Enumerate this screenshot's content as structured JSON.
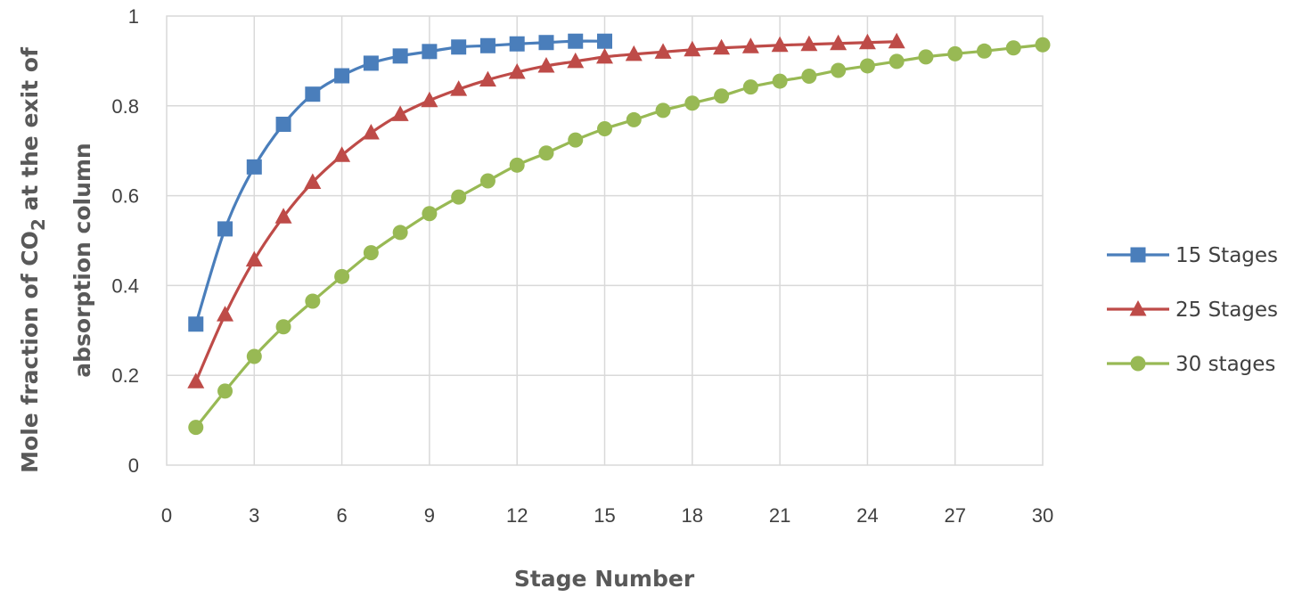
{
  "chart_data": {
    "type": "line",
    "xlabel": "Stage Number",
    "ylabel": {
      "prefix": "Mole fraction of CO",
      "subscript": "2",
      "suffix": "  at the exit of",
      "line2": "absorption column"
    },
    "xlim": [
      0,
      30
    ],
    "ylim": [
      0,
      1
    ],
    "x_ticks": [
      0,
      3,
      6,
      9,
      12,
      15,
      18,
      21,
      24,
      27,
      30
    ],
    "y_ticks": [
      {
        "value": 0,
        "label": "0"
      },
      {
        "value": 0.2,
        "label": "0.2"
      },
      {
        "value": 0.4,
        "label": "0.4"
      },
      {
        "value": 0.6,
        "label": "0.6"
      },
      {
        "value": 0.8,
        "label": "0.8"
      },
      {
        "value": 1,
        "label": "1"
      }
    ],
    "grid": true,
    "legend_position": "right",
    "series": [
      {
        "name": "15 Stages",
        "color": "#4a7ebb",
        "marker": "square",
        "x": [
          1,
          2,
          3,
          4,
          5,
          6,
          7,
          8,
          9,
          10,
          11,
          12,
          13,
          14,
          15
        ],
        "values": [
          0.314,
          0.526,
          0.664,
          0.759,
          0.826,
          0.867,
          0.895,
          0.911,
          0.921,
          0.931,
          0.934,
          0.938,
          0.941,
          0.944,
          0.944
        ]
      },
      {
        "name": "25 Stages",
        "color": "#be4b48",
        "marker": "triangle",
        "x": [
          1,
          2,
          3,
          4,
          5,
          6,
          7,
          8,
          9,
          10,
          11,
          12,
          13,
          14,
          15,
          16,
          17,
          18,
          19,
          20,
          21,
          22,
          23,
          24,
          25
        ],
        "values": [
          0.186,
          0.335,
          0.457,
          0.553,
          0.63,
          0.69,
          0.74,
          0.781,
          0.812,
          0.837,
          0.858,
          0.875,
          0.889,
          0.899,
          0.909,
          0.915,
          0.92,
          0.925,
          0.929,
          0.932,
          0.935,
          0.937,
          0.939,
          0.941,
          0.943
        ]
      },
      {
        "name": "30 stages",
        "color": "#98b954",
        "marker": "circle",
        "x": [
          1,
          2,
          3,
          4,
          5,
          6,
          7,
          8,
          9,
          10,
          11,
          12,
          13,
          14,
          15,
          16,
          17,
          18,
          19,
          20,
          21,
          22,
          23,
          24,
          25,
          26,
          27,
          28,
          29,
          30
        ],
        "values": [
          0.084,
          0.165,
          0.242,
          0.308,
          0.365,
          0.42,
          0.473,
          0.518,
          0.56,
          0.597,
          0.633,
          0.668,
          0.695,
          0.724,
          0.749,
          0.769,
          0.79,
          0.806,
          0.822,
          0.842,
          0.855,
          0.866,
          0.879,
          0.889,
          0.899,
          0.909,
          0.916,
          0.922,
          0.929,
          0.936
        ]
      }
    ]
  }
}
